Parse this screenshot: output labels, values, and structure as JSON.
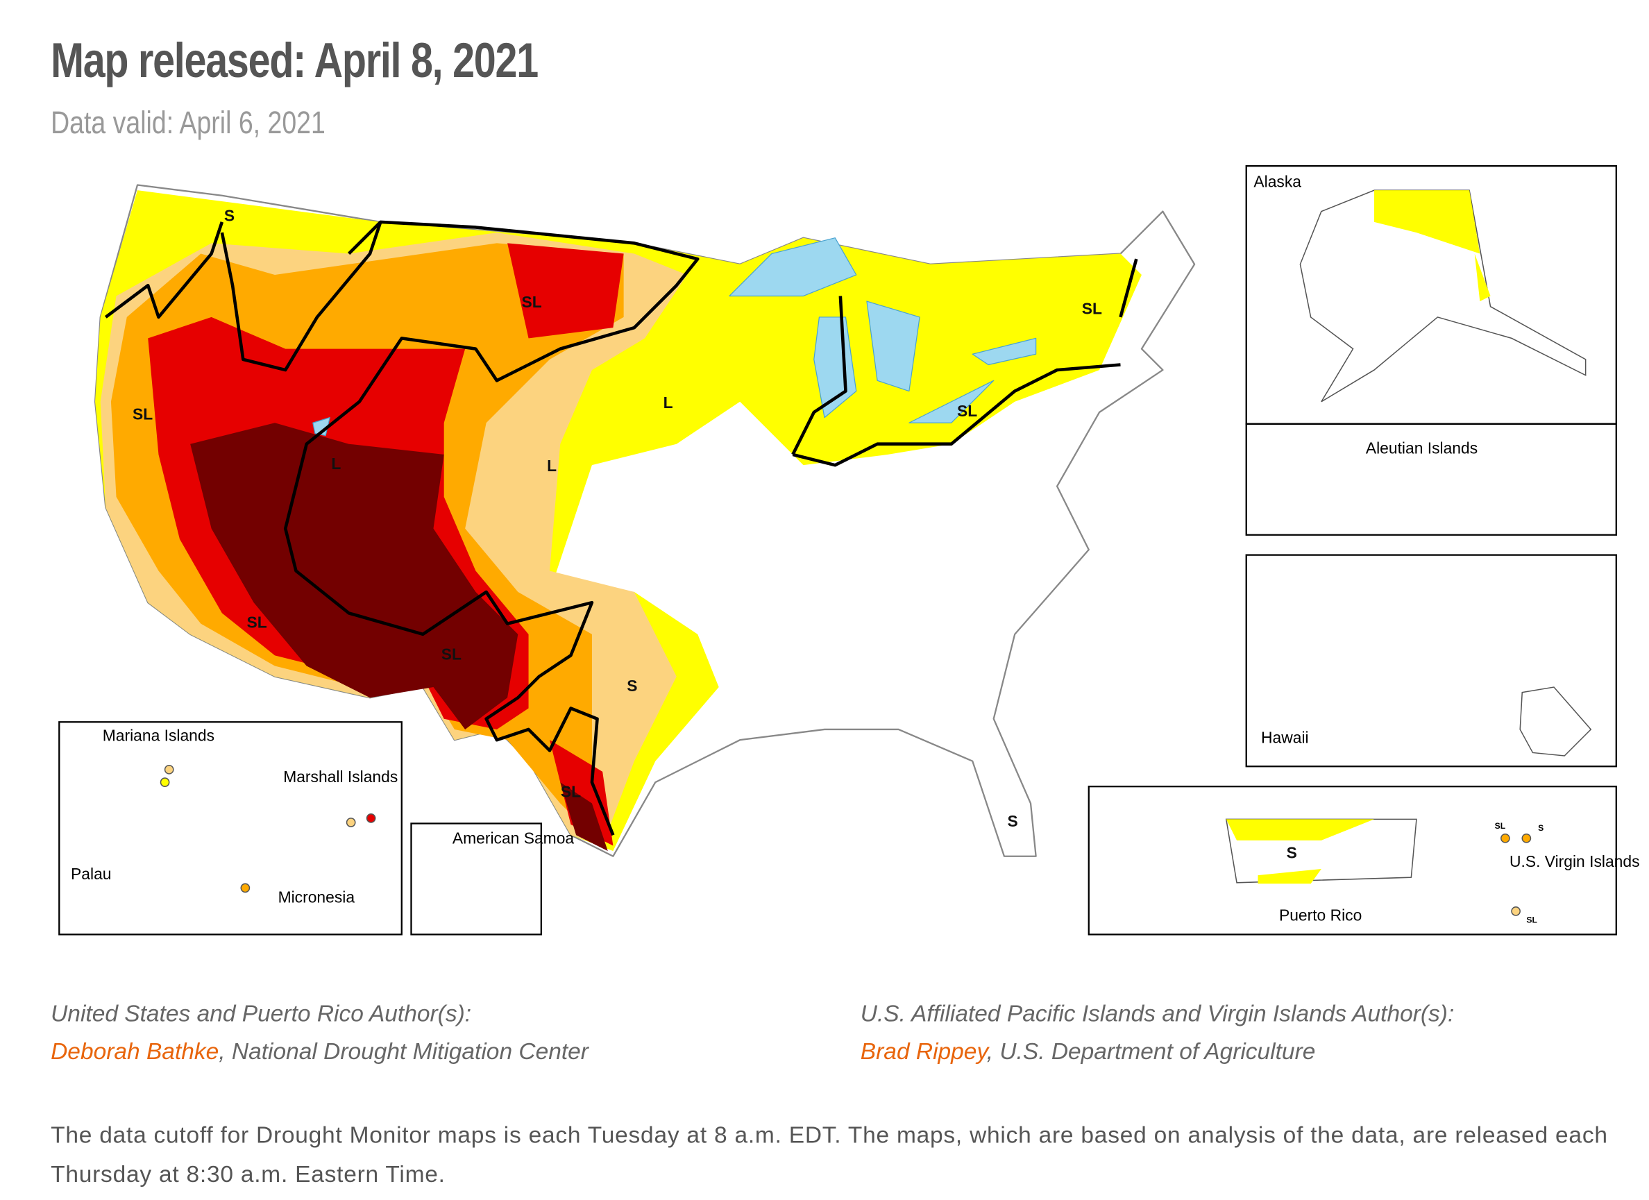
{
  "header": {
    "title": "Map released: April 8, 2021",
    "subtitle": "Data valid: April 6, 2021"
  },
  "map": {
    "labels": [
      "S",
      "SL",
      "L",
      "SL",
      "L",
      "L",
      "SL",
      "SL",
      "S",
      "SL",
      "S",
      "SL",
      "SL"
    ],
    "insets": {
      "alaska": "Alaska",
      "aleutian": "Aleutian Islands",
      "hawaii": "Hawaii",
      "puerto_rico": "Puerto Rico",
      "virgin_islands": "U.S. Virgin\nIslands",
      "mariana": "Mariana\nIslands",
      "marshall": "Marshall\nIslands",
      "palau": "Palau",
      "micronesia": "Micronesia",
      "samoa": "American\nSamoa"
    },
    "inset_labels": [
      "S",
      "SL",
      "S",
      "SL"
    ]
  },
  "authors": [
    {
      "heading": "United States and Puerto Rico Author(s):",
      "name": "Deborah Bathke",
      "affiliation": ", National Drought Mitigation Center"
    },
    {
      "heading": "U.S. Affiliated Pacific Islands and Virgin Islands Author(s):",
      "name": "Brad Rippey",
      "affiliation": ", U.S. Department of Agriculture"
    }
  ],
  "footer": "The data cutoff for Drought Monitor maps is each Tuesday at 8 a.m. EDT. The maps, which are based on analysis of the data, are released each Thursday at 8:30 a.m. Eastern Time."
}
